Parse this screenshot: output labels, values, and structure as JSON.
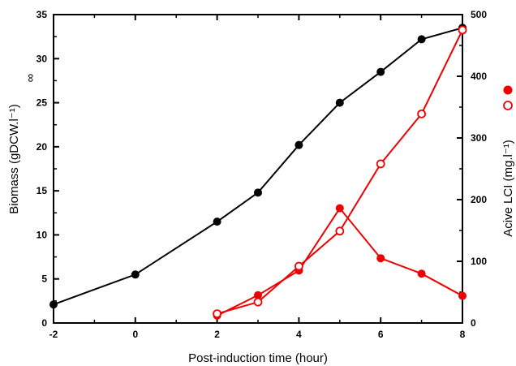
{
  "chart_data": {
    "type": "line",
    "xlabel": "Post-induction time (hour)",
    "ylabel_left": "Biomass (gDCW.l⁻¹)",
    "ylabel_left_extra": "∞",
    "ylabel_right": "Acive LCI (mg.l⁻¹)",
    "x_ticks": [
      "-2",
      "0",
      "2",
      "4",
      "6",
      "8"
    ],
    "y_left_ticks": [
      "0",
      "5",
      "10",
      "15",
      "20",
      "25",
      "30",
      "35"
    ],
    "y_right_ticks": [
      "0",
      "100",
      "200",
      "300",
      "400",
      "500"
    ],
    "xlim": [
      -2,
      8
    ],
    "ylim_left": [
      0,
      35
    ],
    "ylim_right": [
      0,
      500
    ],
    "grid": false,
    "legend_placement": "right",
    "series": [
      {
        "axis": "left",
        "color": "#000000",
        "marker": "filled-circle",
        "x": [
          -2,
          0,
          2,
          3,
          4,
          5,
          6,
          7,
          8
        ],
        "y": [
          2.1,
          5.5,
          11.5,
          14.8,
          20.2,
          25.0,
          28.5,
          32.2,
          33.5
        ]
      },
      {
        "axis": "right",
        "color": "#ee0000",
        "marker": "filled-circle",
        "x": [
          2,
          3,
          4,
          5,
          6,
          7,
          8
        ],
        "y": [
          12,
          45,
          85,
          186,
          105,
          80,
          44
        ]
      },
      {
        "axis": "right",
        "color": "#ee0000",
        "marker": "open-circle",
        "x": [
          2,
          3,
          4,
          5,
          6,
          7,
          8
        ],
        "y": [
          15,
          34,
          92,
          149,
          258,
          339,
          475
        ]
      }
    ]
  }
}
